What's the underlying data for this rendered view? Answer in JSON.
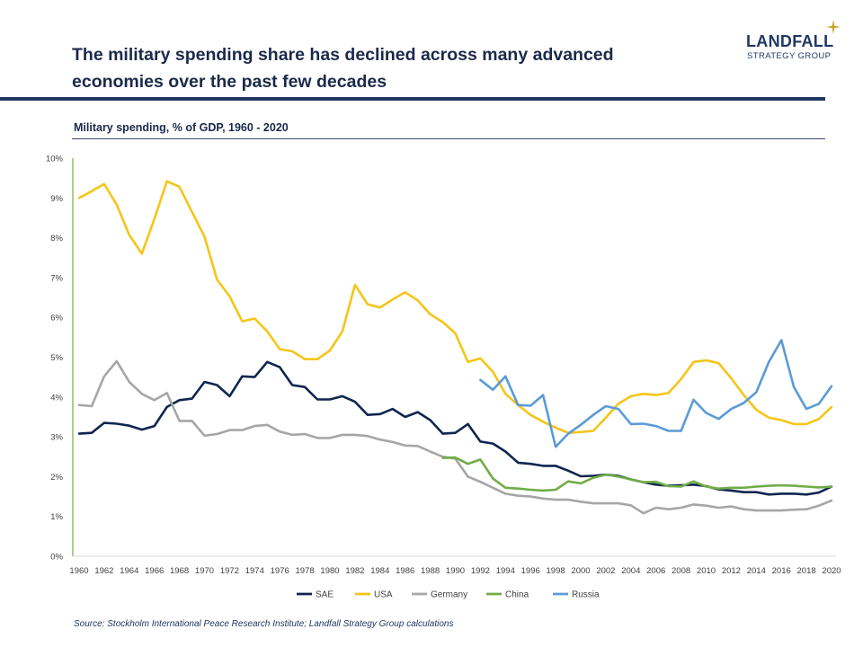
{
  "header": {
    "title": "The military spending share has declined across many advanced economies over the past few decades",
    "subtitle": "Military spending, % of GDP, 1960 - 2020",
    "source": "Source: Stockholm  International Peace Research Institute; Landfall Strategy Group calculations"
  },
  "logo": {
    "name": "LANDFALL",
    "tagline": "STRATEGY GROUP",
    "icon": "four-point-star-icon",
    "color": "#1f3864",
    "star_color": "#c9a227"
  },
  "colors": {
    "navy": "#1f3864",
    "axis_y": "#70ad47"
  },
  "chart_data": {
    "type": "line",
    "title": "Military spending, % of GDP, 1960 - 2020",
    "xlabel": "",
    "ylabel": "",
    "ylim": [
      0,
      10
    ],
    "xlim": [
      1960,
      2020
    ],
    "y_ticks": [
      "0%",
      "1%",
      "2%",
      "3%",
      "4%",
      "5%",
      "6%",
      "7%",
      "8%",
      "9%",
      "10%"
    ],
    "x_ticks": [
      "1960",
      "1962",
      "1964",
      "1966",
      "1968",
      "1970",
      "1972",
      "1974",
      "1976",
      "1978",
      "1980",
      "1982",
      "1984",
      "1986",
      "1988",
      "1990",
      "1992",
      "1994",
      "1996",
      "1998",
      "2000",
      "2002",
      "2004",
      "2006",
      "2008",
      "2010",
      "2012",
      "2014",
      "2016",
      "2018",
      "2020"
    ],
    "grid": false,
    "legend_position": "bottom",
    "series": [
      {
        "name": "SAE",
        "color": "#0f2650",
        "start": 1960,
        "values": [
          3.08,
          3.1,
          3.35,
          3.33,
          3.28,
          3.18,
          3.27,
          3.75,
          3.92,
          3.96,
          4.38,
          4.3,
          4.02,
          4.52,
          4.5,
          4.88,
          4.75,
          4.3,
          4.25,
          3.94,
          3.94,
          4.02,
          3.88,
          3.55,
          3.57,
          3.7,
          3.5,
          3.62,
          3.42,
          3.08,
          3.1,
          3.32,
          2.88,
          2.83,
          2.63,
          2.35,
          2.32,
          2.27,
          2.27,
          2.15,
          2.01,
          2.02,
          2.05,
          2.02,
          1.93,
          1.86,
          1.8,
          1.77,
          1.78,
          1.8,
          1.76,
          1.68,
          1.65,
          1.61,
          1.61,
          1.55,
          1.57,
          1.57,
          1.55,
          1.6,
          1.75
        ]
      },
      {
        "name": "USA",
        "color": "#f5c518",
        "start": 1960,
        "values": [
          9.0,
          9.17,
          9.35,
          8.83,
          8.07,
          7.6,
          8.47,
          9.42,
          9.28,
          8.65,
          8.03,
          6.95,
          6.53,
          5.9,
          5.97,
          5.65,
          5.2,
          5.15,
          4.95,
          4.95,
          5.17,
          5.65,
          6.82,
          6.33,
          6.25,
          6.45,
          6.63,
          6.43,
          6.08,
          5.88,
          5.6,
          4.88,
          4.97,
          4.63,
          4.08,
          3.8,
          3.55,
          3.38,
          3.23,
          3.1,
          3.12,
          3.15,
          3.48,
          3.83,
          4.02,
          4.08,
          4.05,
          4.1,
          4.45,
          4.88,
          4.92,
          4.85,
          4.47,
          4.05,
          3.68,
          3.48,
          3.42,
          3.32,
          3.32,
          3.45,
          3.75
        ]
      },
      {
        "name": "Germany",
        "color": "#a6a6a6",
        "start": 1960,
        "values": [
          3.8,
          3.77,
          4.52,
          4.9,
          4.38,
          4.08,
          3.92,
          4.1,
          3.4,
          3.4,
          3.03,
          3.07,
          3.17,
          3.17,
          3.27,
          3.3,
          3.13,
          3.05,
          3.07,
          2.97,
          2.97,
          3.05,
          3.05,
          3.02,
          2.93,
          2.87,
          2.78,
          2.77,
          2.63,
          2.5,
          2.45,
          2.0,
          1.87,
          1.72,
          1.57,
          1.52,
          1.5,
          1.45,
          1.42,
          1.42,
          1.37,
          1.33,
          1.33,
          1.33,
          1.28,
          1.08,
          1.22,
          1.18,
          1.22,
          1.3,
          1.27,
          1.22,
          1.25,
          1.18,
          1.15,
          1.15,
          1.15,
          1.17,
          1.18,
          1.27,
          1.4
        ]
      },
      {
        "name": "China",
        "color": "#70ad47",
        "start": 1989,
        "values": [
          2.47,
          2.48,
          2.32,
          2.43,
          1.95,
          1.72,
          1.7,
          1.67,
          1.65,
          1.67,
          1.88,
          1.83,
          1.97,
          2.05,
          2.0,
          1.93,
          1.86,
          1.87,
          1.76,
          1.75,
          1.88,
          1.75,
          1.7,
          1.72,
          1.72,
          1.75,
          1.77,
          1.78,
          1.77,
          1.75,
          1.73,
          1.75
        ]
      },
      {
        "name": "Russia",
        "color": "#5b9bd5",
        "start": 1992,
        "values": [
          4.43,
          4.18,
          4.52,
          3.8,
          3.78,
          4.05,
          2.75,
          3.08,
          3.3,
          3.55,
          3.77,
          3.7,
          3.32,
          3.33,
          3.27,
          3.15,
          3.15,
          3.93,
          3.6,
          3.45,
          3.7,
          3.85,
          4.12,
          4.88,
          5.43,
          4.25,
          3.7,
          3.83,
          4.27
        ]
      }
    ]
  }
}
